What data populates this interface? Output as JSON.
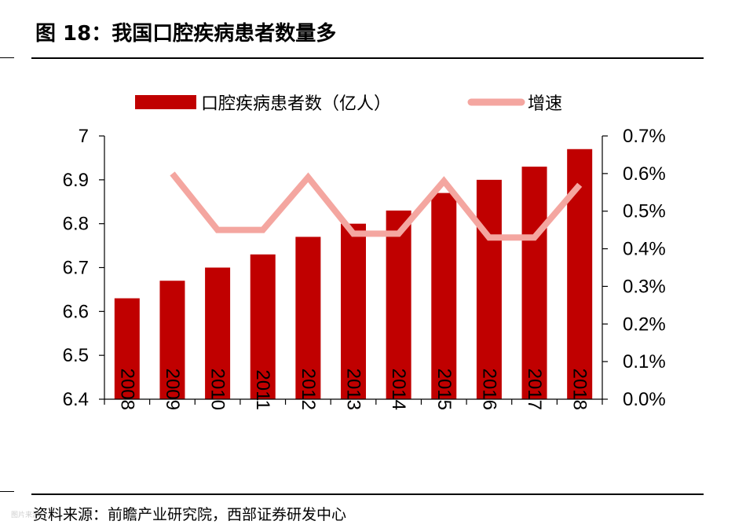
{
  "figure": {
    "title": "图 18：我国口腔疾病患者数量多",
    "source": "资料来源：前瞻产业研究院，西部证券研发中心",
    "watermark": "图片来源：……"
  },
  "chart_data": {
    "type": "bar",
    "title": "",
    "xlabel": "",
    "ylabel": "",
    "categories": [
      "2008",
      "2009",
      "2010",
      "2011",
      "2012",
      "2013",
      "2014",
      "2015",
      "2016",
      "2017",
      "2018"
    ],
    "series": [
      {
        "name": "口腔疾病患者数（亿人）",
        "type": "bar",
        "axis": "left",
        "color": "#c00000",
        "values": [
          6.63,
          6.67,
          6.7,
          6.73,
          6.77,
          6.8,
          6.83,
          6.87,
          6.9,
          6.93,
          6.97
        ]
      },
      {
        "name": "增速",
        "type": "line",
        "axis": "right",
        "color": "#f4a6a0",
        "values": [
          null,
          0.6,
          0.45,
          0.45,
          0.59,
          0.44,
          0.44,
          0.58,
          0.43,
          0.43,
          0.57
        ]
      }
    ],
    "y_left": {
      "ylim": [
        6.4,
        7.0
      ],
      "ticks": [
        6.4,
        6.5,
        6.6,
        6.7,
        6.8,
        6.9,
        7
      ],
      "tick_labels": [
        "6.4",
        "6.5",
        "6.6",
        "6.7",
        "6.8",
        "6.9",
        "7"
      ]
    },
    "y_right": {
      "ylim": [
        0,
        0.7
      ],
      "ticks": [
        0,
        0.1,
        0.2,
        0.3,
        0.4,
        0.5,
        0.6,
        0.7
      ],
      "tick_labels": [
        "0.0%",
        "0.1%",
        "0.2%",
        "0.3%",
        "0.4%",
        "0.5%",
        "0.6%",
        "0.7%"
      ]
    },
    "grid": false,
    "legend": "top-center"
  }
}
